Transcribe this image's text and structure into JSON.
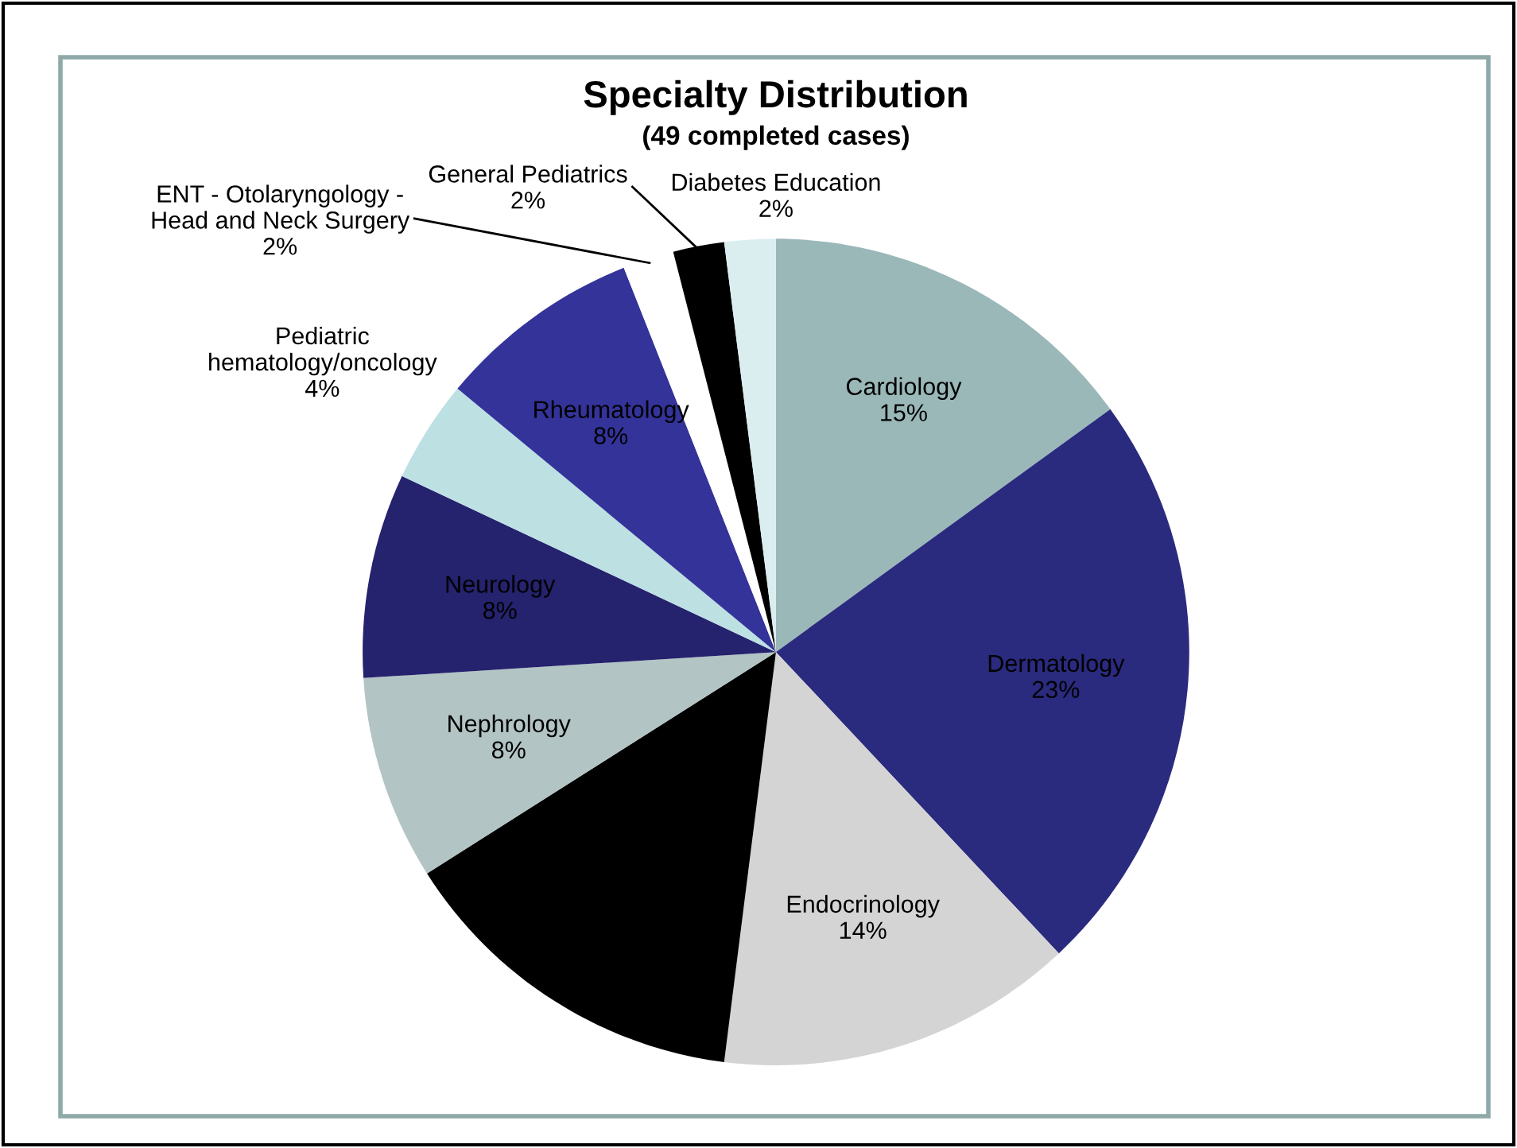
{
  "chart_data": {
    "type": "pie",
    "title": "Specialty Distribution",
    "subtitle": "(49 completed cases)",
    "categories": [
      "Cardiology",
      "Dermatology",
      "Endocrinology",
      null,
      "Nephrology",
      "Neurology",
      "Pediatric hematology/oncology",
      "Rheumatology",
      "ENT - Otolaryngology - Head and Neck Surgery",
      "General Pediatrics",
      "Diabetes Education"
    ],
    "values": [
      15,
      23,
      14,
      14,
      8,
      8,
      4,
      8,
      2,
      2,
      2
    ],
    "value_labels": [
      "15%",
      "23%",
      "14%",
      null,
      "8%",
      "8%",
      "4%",
      "8%",
      "2%",
      "2%",
      "2%"
    ],
    "colors": [
      "#9bb8b9",
      "#2a2a7e",
      "#d4d4d4",
      "#000000",
      "#b3c4c4",
      "#25226e",
      "#bde0e3",
      "#33339a",
      "#ffffff",
      "#000000",
      "#daeef0"
    ],
    "legend": false
  }
}
